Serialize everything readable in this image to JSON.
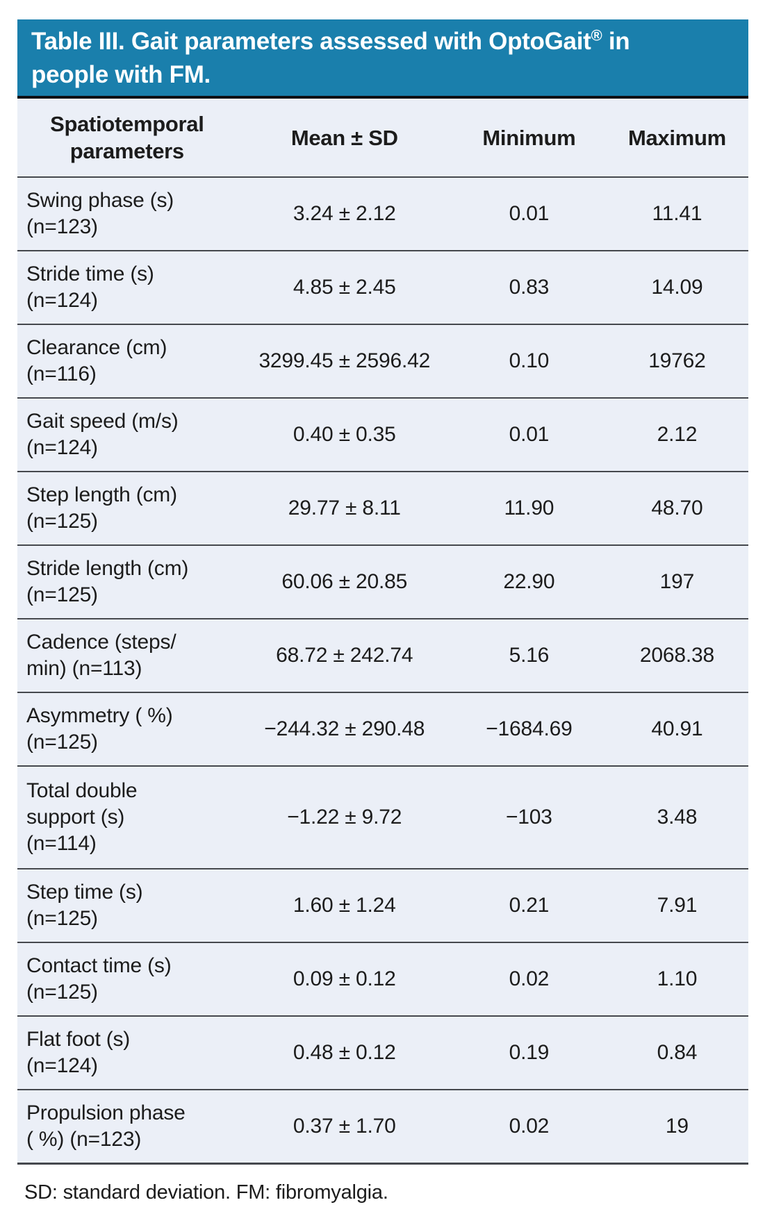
{
  "table": {
    "title": {
      "part1": "Table III. Gait parameters assessed with OptoGait",
      "registered": "®",
      "part2": " in\npeople with FM."
    },
    "columns": {
      "param": "Spatiotemporal\nparameters",
      "mean": "Mean ± SD",
      "min": "Minimum",
      "max": "Maximum"
    },
    "rows": [
      {
        "param": "Swing phase (s)\n(n=123)",
        "mean": "3.24 ± 2.12",
        "min": "0.01",
        "max": "11.41"
      },
      {
        "param": "Stride time (s)\n(n=124)",
        "mean": "4.85 ± 2.45",
        "min": "0.83",
        "max": "14.09"
      },
      {
        "param": "Clearance (cm)\n(n=116)",
        "mean": "3299.45 ± 2596.42",
        "min": "0.10",
        "max": "19762"
      },
      {
        "param": "Gait speed (m/s)\n(n=124)",
        "mean": "0.40 ± 0.35",
        "min": "0.01",
        "max": "2.12"
      },
      {
        "param": "Step length (cm)\n(n=125)",
        "mean": "29.77 ± 8.11",
        "min": "11.90",
        "max": "48.70"
      },
      {
        "param": "Stride length (cm)\n(n=125)",
        "mean": "60.06 ± 20.85",
        "min": "22.90",
        "max": "197"
      },
      {
        "param": "Cadence (steps/\nmin) (n=113)",
        "mean": "68.72 ± 242.74",
        "min": "5.16",
        "max": "2068.38"
      },
      {
        "param": "Asymmetry ( %)\n(n=125)",
        "mean": "−244.32 ± 290.48",
        "min": "−1684.69",
        "max": "40.91"
      },
      {
        "param": "Total double\nsupport (s)\n(n=114)",
        "mean": "−1.22 ± 9.72",
        "min": "−103",
        "max": "3.48"
      },
      {
        "param": "Step time (s)\n(n=125)",
        "mean": "1.60 ± 1.24",
        "min": "0.21",
        "max": "7.91"
      },
      {
        "param": "Contact time (s)\n(n=125)",
        "mean": "0.09 ± 0.12",
        "min": "0.02",
        "max": "1.10"
      },
      {
        "param": "Flat foot (s)\n(n=124)",
        "mean": "0.48 ± 0.12",
        "min": "0.19",
        "max": "0.84"
      },
      {
        "param": "Propulsion phase\n( %) (n=123)",
        "mean": "0.37 ± 1.70",
        "min": "0.02",
        "max": "19"
      }
    ],
    "footnote": "SD: standard deviation. FM: fibromyalgia.",
    "colors": {
      "header_blue": "#1a7fac",
      "body_background": "#ebeff7",
      "separator_gray": "#45484d",
      "title_underline_black": "#0b0f14",
      "title_text": "#ffffff",
      "body_text": "#1c1c1c"
    }
  }
}
